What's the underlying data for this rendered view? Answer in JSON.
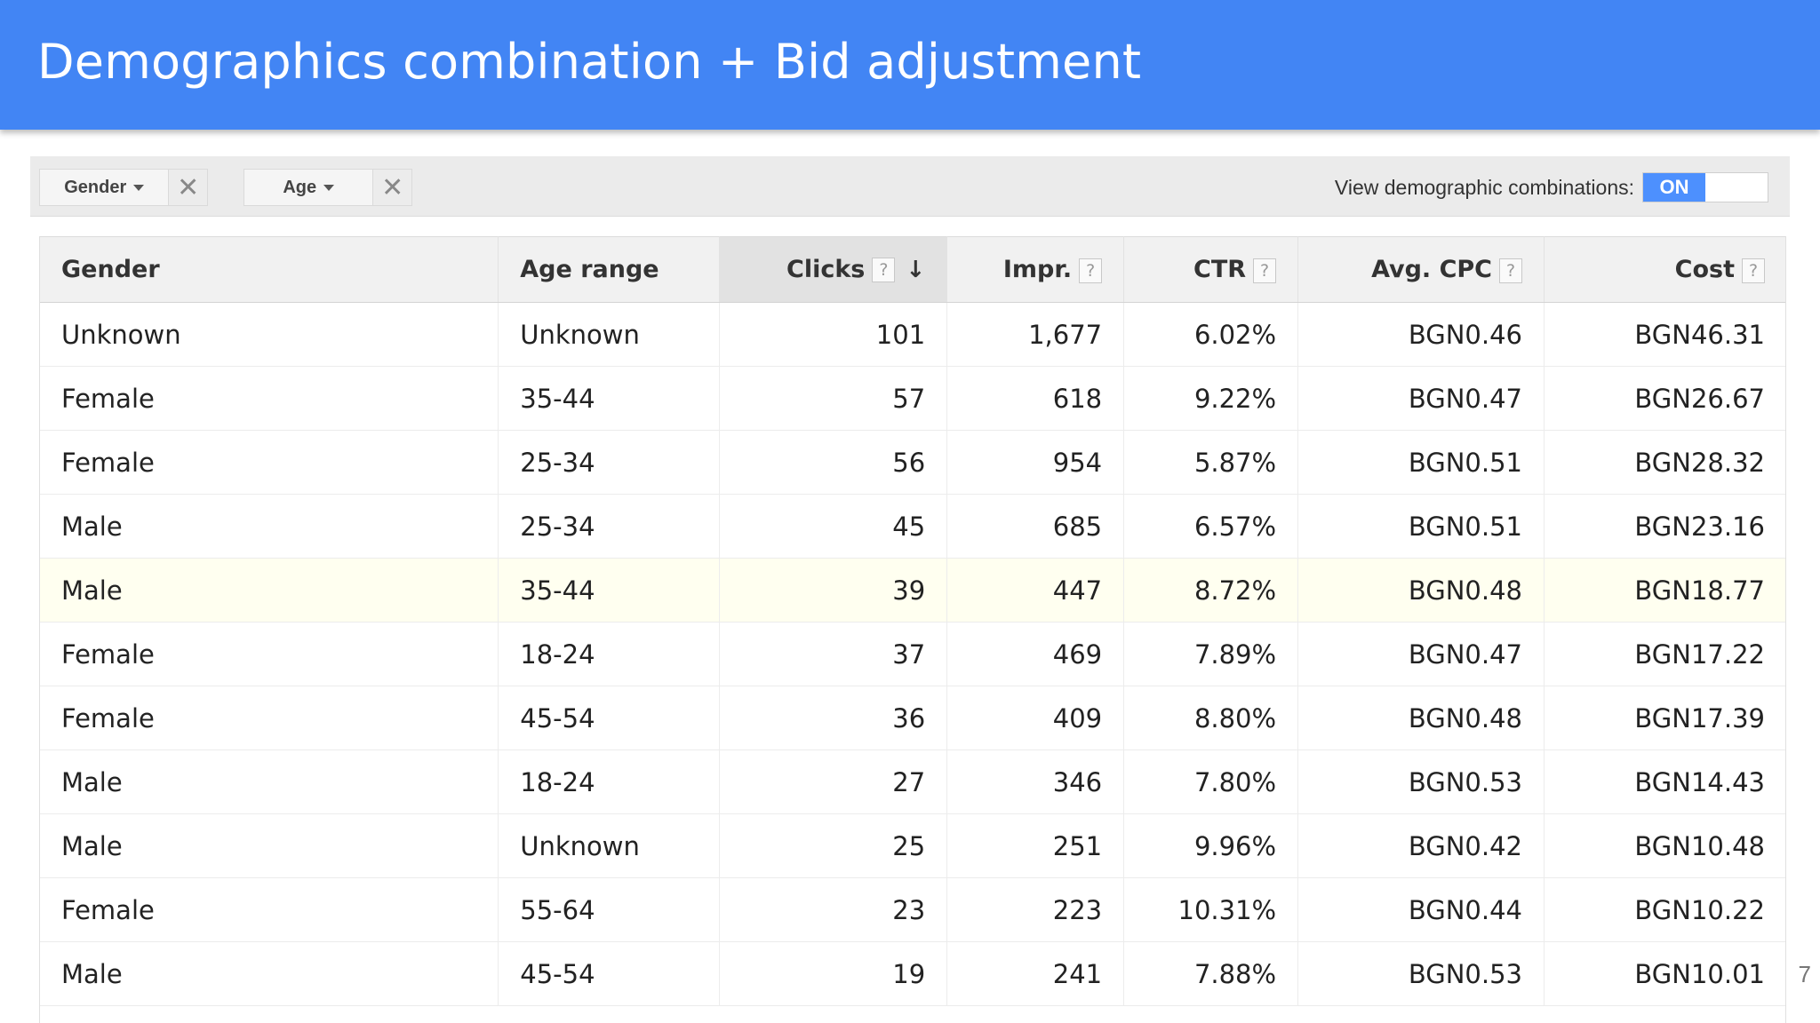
{
  "header": {
    "title": "Demographics combination + Bid adjustment"
  },
  "toolbar": {
    "filters": [
      {
        "label": "Gender",
        "remove": "✕"
      },
      {
        "label": "Age",
        "remove": "✕"
      }
    ],
    "toggle_label": "View demographic combinations:",
    "toggle_state": "ON"
  },
  "table": {
    "columns": [
      {
        "label": "Gender",
        "help": ""
      },
      {
        "label": "Age range",
        "help": ""
      },
      {
        "label": "Clicks",
        "help": "?",
        "sort": "↓"
      },
      {
        "label": "Impr.",
        "help": "?"
      },
      {
        "label": "CTR",
        "help": "?"
      },
      {
        "label": "Avg. CPC",
        "help": "?"
      },
      {
        "label": "Cost",
        "help": "?"
      }
    ],
    "rows": [
      [
        "Unknown",
        "Unknown",
        "101",
        "1,677",
        "6.02%",
        "BGN0.46",
        "BGN46.31"
      ],
      [
        "Female",
        "35-44",
        "57",
        "618",
        "9.22%",
        "BGN0.47",
        "BGN26.67"
      ],
      [
        "Female",
        "25-34",
        "56",
        "954",
        "5.87%",
        "BGN0.51",
        "BGN28.32"
      ],
      [
        "Male",
        "25-34",
        "45",
        "685",
        "6.57%",
        "BGN0.51",
        "BGN23.16"
      ],
      [
        "Male",
        "35-44",
        "39",
        "447",
        "8.72%",
        "BGN0.48",
        "BGN18.77"
      ],
      [
        "Female",
        "18-24",
        "37",
        "469",
        "7.89%",
        "BGN0.47",
        "BGN17.22"
      ],
      [
        "Female",
        "45-54",
        "36",
        "409",
        "8.80%",
        "BGN0.48",
        "BGN17.39"
      ],
      [
        "Male",
        "18-24",
        "27",
        "346",
        "7.80%",
        "BGN0.53",
        "BGN14.43"
      ],
      [
        "Male",
        "Unknown",
        "25",
        "251",
        "9.96%",
        "BGN0.42",
        "BGN10.48"
      ],
      [
        "Female",
        "55-64",
        "23",
        "223",
        "10.31%",
        "BGN0.44",
        "BGN10.22"
      ],
      [
        "Male",
        "45-54",
        "19",
        "241",
        "7.88%",
        "BGN0.53",
        "BGN10.01"
      ]
    ],
    "highlighted_row": 4
  },
  "footer": {
    "page_number": "7"
  },
  "colors": {
    "header_bg": "#4285f4",
    "toggle_on": "#4d90fe",
    "highlight_row": "#fffff0"
  }
}
